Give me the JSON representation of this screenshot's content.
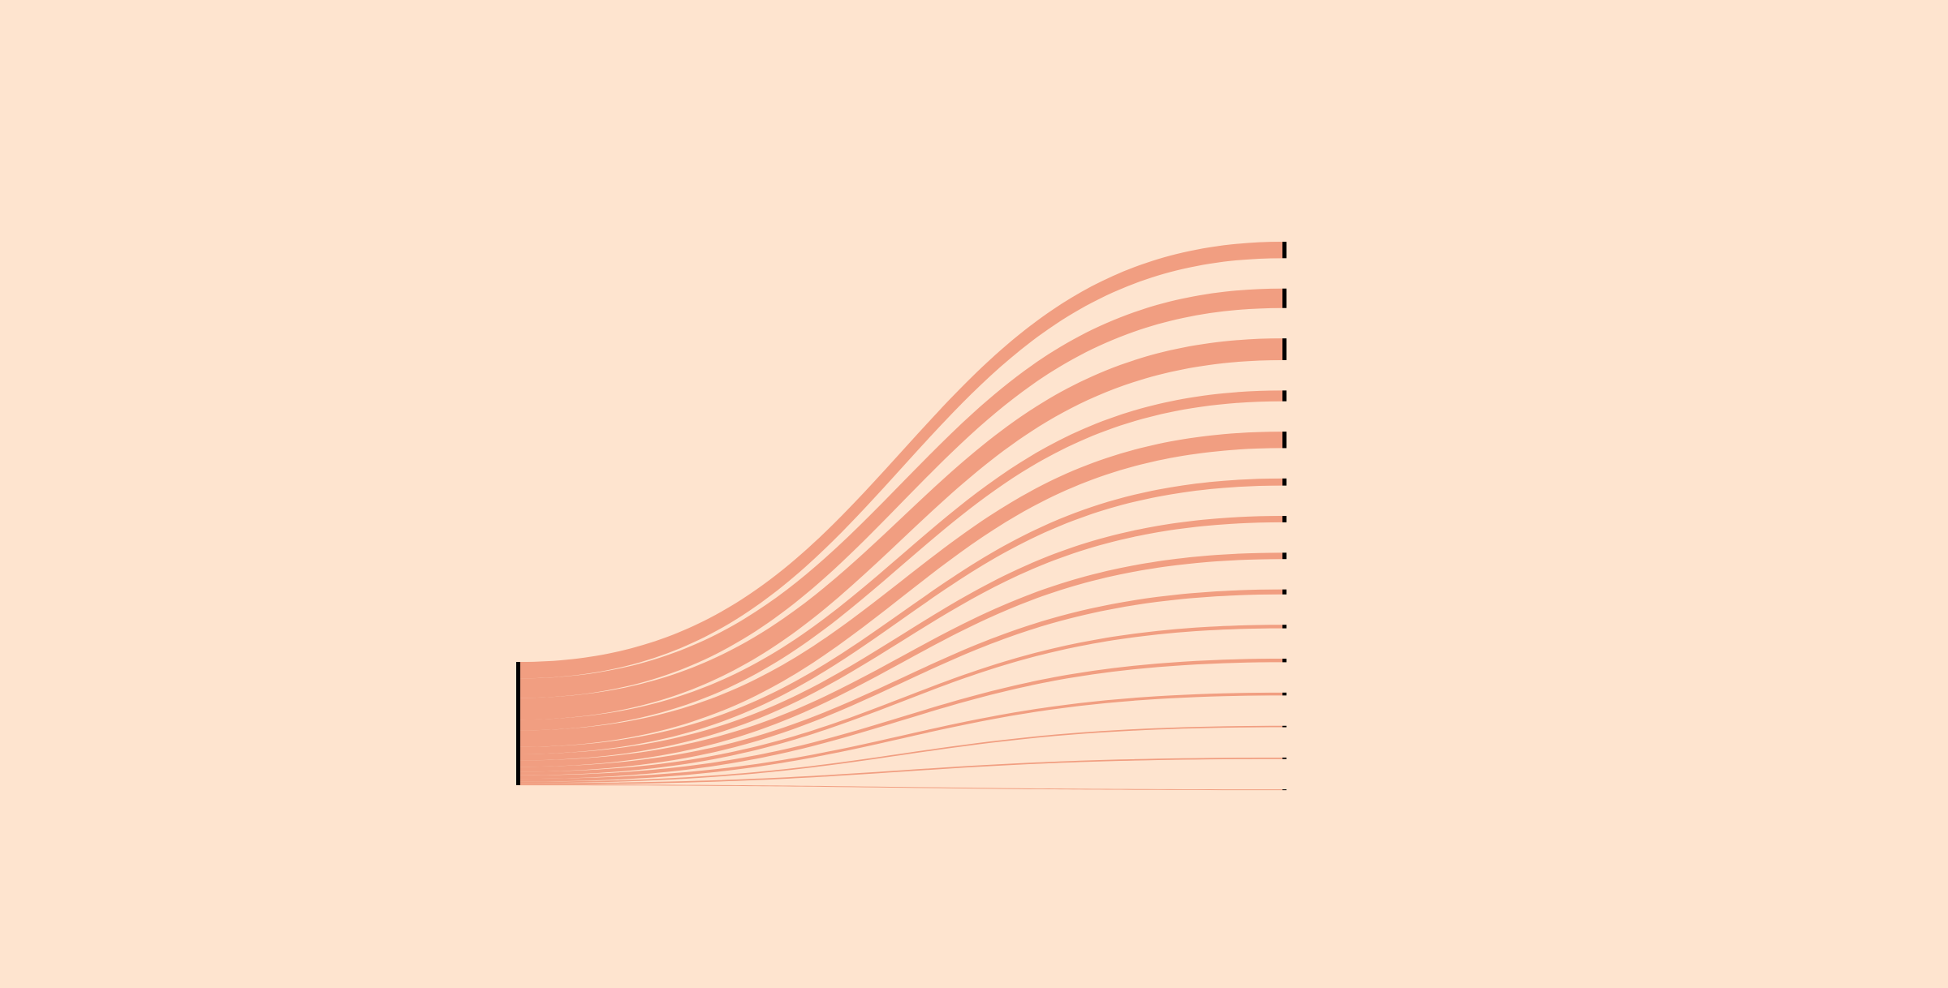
{
  "colors": {
    "background": "#FEE4CF",
    "link": "#F19E81",
    "node": "#000000"
  },
  "chart_data": {
    "type": "sankey",
    "title": "",
    "source": {
      "name": "",
      "value": 100
    },
    "targets": [
      {
        "name": "",
        "value": 11.6
      },
      {
        "name": "",
        "value": 13.7
      },
      {
        "name": "",
        "value": 15.3
      },
      {
        "name": "",
        "value": 7.6
      },
      {
        "name": "",
        "value": 11.6
      },
      {
        "name": "",
        "value": 5.0
      },
      {
        "name": "",
        "value": 4.5
      },
      {
        "name": "",
        "value": 4.5
      },
      {
        "name": "",
        "value": 3.5
      },
      {
        "name": "",
        "value": 2.5
      },
      {
        "name": "",
        "value": 2.5
      },
      {
        "name": "",
        "value": 2.0
      },
      {
        "name": "",
        "value": 1.0
      },
      {
        "name": "",
        "value": 1.0
      },
      {
        "name": "",
        "value": 0.5
      }
    ]
  }
}
